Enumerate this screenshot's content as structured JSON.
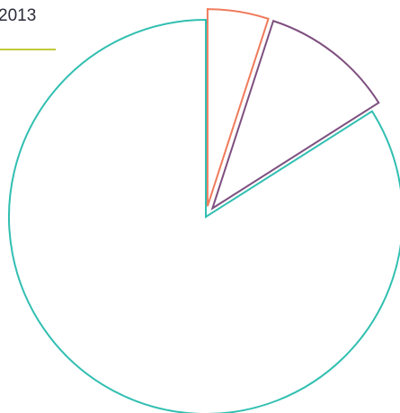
{
  "chart_data": {
    "type": "pie",
    "subtitle": "2013",
    "values": [
      5,
      11,
      84
    ],
    "colors": [
      "#ef7b5c",
      "#7e4f7f",
      "#31bfb1"
    ],
    "explode": true
  }
}
